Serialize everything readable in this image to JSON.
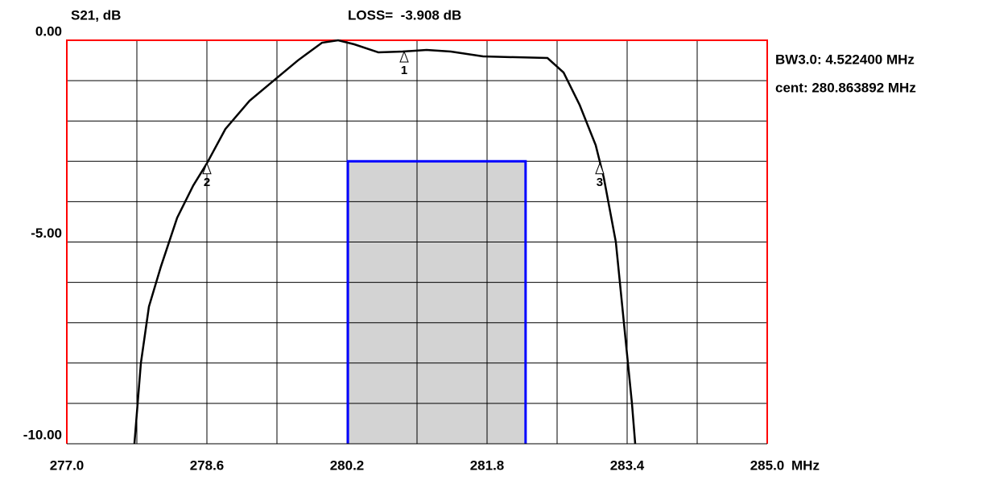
{
  "chart_data": {
    "type": "line",
    "title": "LOSS=  -3.908 dB",
    "ylabel": "S21, dB",
    "xlabel": "MHz",
    "annotations": [
      "BW3.0: 4.522400 MHz",
      "cent: 280.863892 MHz"
    ],
    "x": [
      277.772,
      277.846,
      277.938,
      278.076,
      278.26,
      278.444,
      278.6,
      278.811,
      279.087,
      279.363,
      279.639,
      279.915,
      280.099,
      280.283,
      280.559,
      280.835,
      281.11,
      281.386,
      281.754,
      282.122,
      282.49,
      282.674,
      282.857,
      283.041,
      283.133,
      283.271,
      283.363,
      283.455,
      283.492
    ],
    "series": [
      {
        "name": "S21",
        "color": "#000000",
        "values": [
          -10,
          -8.0,
          -6.6,
          -5.6,
          -4.4,
          -3.6,
          -3.05,
          -2.2,
          -1.5,
          -1.0,
          -0.5,
          -0.06,
          0,
          -0.1,
          -0.3,
          -0.28,
          -0.24,
          -0.28,
          -0.4,
          -0.42,
          -0.44,
          -0.8,
          -1.6,
          -2.6,
          -3.4,
          -5.0,
          -7.0,
          -9.0,
          -10
        ]
      }
    ],
    "markers": [
      {
        "label": "1",
        "x": 280.853,
        "y": -0.28
      },
      {
        "label": "2",
        "x": 278.6,
        "y": -3.05
      },
      {
        "label": "3",
        "x": 283.087,
        "y": -3.05
      }
    ],
    "mask": {
      "x": [
        280.21,
        282.24
      ],
      "y": [
        -3.0,
        -10
      ],
      "color": "#0000ff",
      "fill": "#d3d3d3"
    },
    "xlim": [
      277,
      285
    ],
    "ylim": [
      -10,
      0
    ],
    "xticks": [
      {
        "value": 277,
        "label": "277.0"
      },
      278.6,
      280.2,
      281.8,
      283.4,
      {
        "value": 285,
        "label": "285.0"
      }
    ],
    "yticks": [
      {
        "value": 0,
        "label": "0.00"
      },
      {
        "value": -5,
        "label": "-5.00"
      },
      {
        "value": -10,
        "label": "-10.00"
      }
    ],
    "xgrid": [
      277,
      277.8,
      278.6,
      279.4,
      280.2,
      281,
      281.8,
      282.6,
      283.4,
      284.2,
      285
    ],
    "ygrid": [
      0,
      -1,
      -2,
      -3,
      -4,
      -5,
      -6,
      -7,
      -8,
      -9,
      -10
    ],
    "grid": true,
    "frame_color": "#ff0000"
  }
}
